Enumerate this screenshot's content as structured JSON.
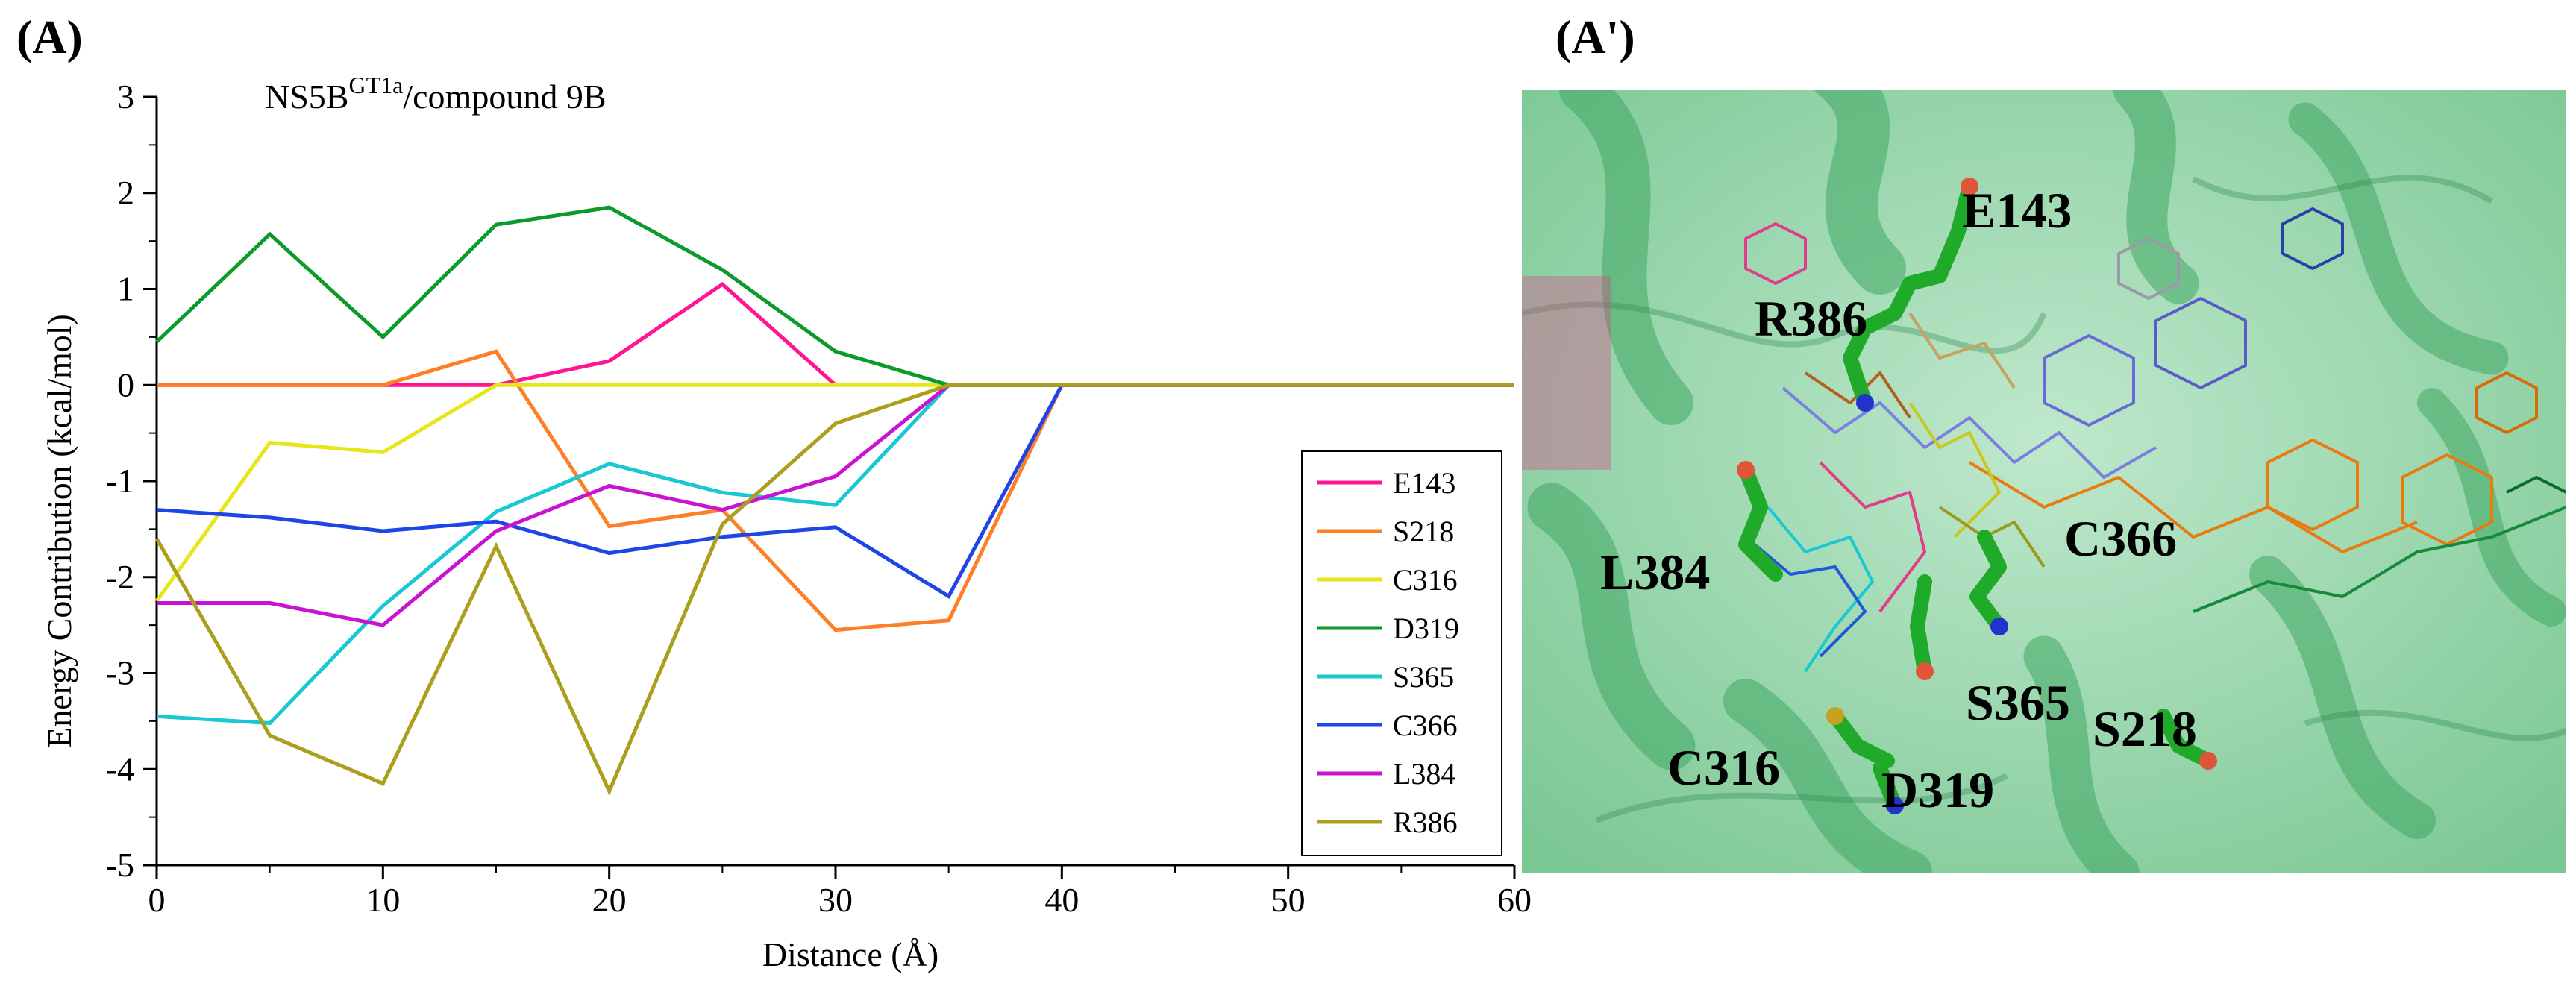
{
  "panels": {
    "a_label": "(A)",
    "a2_label": "(A')"
  },
  "chart_data": {
    "type": "line",
    "title": "NS5B",
    "title_superscript": "GT1a",
    "title_suffix": "/compound 9B",
    "xlabel": "Distance (Å)",
    "ylabel": "Energy Contribution (kcal/mol)",
    "xlim": [
      0,
      60
    ],
    "ylim": [
      -5,
      3
    ],
    "xticks": [
      0,
      10,
      20,
      30,
      40,
      50,
      60
    ],
    "yticks": [
      -5,
      -4,
      -3,
      -2,
      -1,
      0,
      1,
      2,
      3
    ],
    "x": [
      0,
      5,
      10,
      15,
      20,
      25,
      30,
      35,
      40,
      45,
      50,
      55,
      60
    ],
    "legend_position": "lower-right",
    "series": [
      {
        "name": "E143",
        "color": "#ff1493",
        "x": [
          0,
          5,
          10,
          15,
          20,
          25,
          30
        ],
        "values": [
          0,
          0,
          0,
          0,
          0.25,
          1.05,
          0
        ]
      },
      {
        "name": "S218",
        "color": "#ff7f27",
        "x": [
          0,
          5,
          10,
          15,
          20,
          25,
          30,
          35,
          40,
          45,
          50,
          55,
          60
        ],
        "values": [
          0,
          0,
          0,
          0.35,
          -1.47,
          -1.3,
          -2.55,
          -2.45,
          0,
          0,
          0,
          0,
          0
        ]
      },
      {
        "name": "C316",
        "color": "#e6e619",
        "x": [
          0,
          5,
          10,
          15,
          20,
          25,
          30,
          35,
          40,
          45,
          50,
          55,
          60
        ],
        "values": [
          -2.25,
          -0.6,
          -0.7,
          0,
          0,
          0,
          0,
          0,
          0,
          0,
          0,
          0,
          0
        ]
      },
      {
        "name": "D319",
        "color": "#0a9b2a",
        "x": [
          0,
          5,
          10,
          15,
          20,
          25,
          30,
          35,
          40,
          45,
          50,
          55,
          60
        ],
        "values": [
          0.45,
          1.57,
          0.5,
          1.67,
          1.85,
          1.2,
          0.35,
          0,
          0,
          0,
          0,
          0,
          0
        ]
      },
      {
        "name": "S365",
        "color": "#19c8d2",
        "x": [
          0,
          5,
          10,
          15,
          20,
          25,
          30,
          35,
          40,
          45,
          50,
          55,
          60
        ],
        "values": [
          -3.45,
          -3.52,
          -2.3,
          -1.32,
          -0.82,
          -1.12,
          -1.25,
          0,
          0,
          0,
          0,
          0,
          0
        ]
      },
      {
        "name": "C366",
        "color": "#1e46e6",
        "x": [
          0,
          5,
          10,
          15,
          20,
          25,
          30,
          35,
          40,
          45,
          50,
          55,
          60
        ],
        "values": [
          -1.3,
          -1.38,
          -1.52,
          -1.42,
          -1.75,
          -1.58,
          -1.48,
          -2.2,
          0,
          0,
          0,
          0,
          0
        ]
      },
      {
        "name": "L384",
        "color": "#c814d2",
        "x": [
          0,
          5,
          10,
          15,
          20,
          25,
          30,
          35,
          40,
          45,
          50,
          55,
          60
        ],
        "values": [
          -2.27,
          -2.27,
          -2.5,
          -1.52,
          -1.05,
          -1.3,
          -0.95,
          0,
          0,
          0,
          0,
          0,
          0
        ]
      },
      {
        "name": "R386",
        "color": "#aaa01e",
        "x": [
          0,
          5,
          10,
          15,
          20,
          25,
          30,
          35,
          40,
          45,
          50,
          55,
          60
        ],
        "values": [
          -1.6,
          -3.65,
          -4.15,
          -1.68,
          -4.23,
          -1.45,
          -0.4,
          0,
          0,
          0,
          0,
          0,
          0
        ]
      }
    ]
  },
  "structure_labels": {
    "e143": "E143",
    "r386": "R386",
    "c366": "C366",
    "l384": "L384",
    "s365": "S365",
    "s218": "S218",
    "c316": "C316",
    "d319": "D319"
  }
}
